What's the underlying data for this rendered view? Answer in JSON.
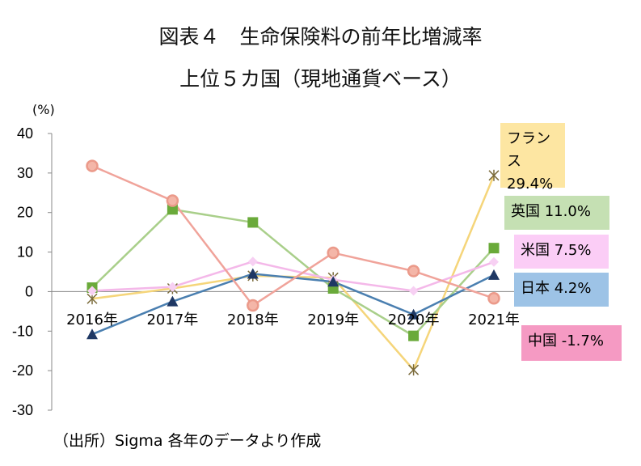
{
  "title_line1": "図表４　生命保険料の前年比増減率",
  "title_line2": "上位５カ国（現地通貨ベース）",
  "unit_label": "(%)",
  "source_note": "（出所）Sigma 各年のデータより作成",
  "chart_data": {
    "type": "line",
    "categories": [
      "2016年",
      "2017年",
      "2018年",
      "2019年",
      "2020年",
      "2021年"
    ],
    "ylim": [
      -30,
      40
    ],
    "yticks": [
      "40",
      "30",
      "20",
      "10",
      "0",
      "-10",
      "-20",
      "-30"
    ],
    "grid": false,
    "series": [
      {
        "name": "フランス",
        "label_value": "29.4%",
        "color": "#f5d57a",
        "marker": "star",
        "values": [
          -1.8,
          0.8,
          4.0,
          3.5,
          -19.8,
          29.4
        ]
      },
      {
        "name": "英国",
        "label_value": "11.0%",
        "color": "#a9cf8a",
        "marker": "square",
        "values": [
          1.0,
          20.8,
          17.5,
          0.8,
          -11.2,
          11.0
        ]
      },
      {
        "name": "米国",
        "label_value": "7.5%",
        "color": "#f4b8e9",
        "marker": "diamond",
        "values": [
          0.2,
          1.2,
          7.6,
          3.0,
          0.2,
          7.5
        ]
      },
      {
        "name": "日本",
        "label_value": "4.2%",
        "color": "#4a7fb0",
        "marker": "triangle",
        "values": [
          -10.8,
          -2.5,
          4.5,
          2.5,
          -5.8,
          4.2
        ]
      },
      {
        "name": "中国",
        "label_value": "-1.7%",
        "color": "#f0a39a",
        "marker": "circle",
        "values": [
          31.8,
          23.0,
          -3.5,
          9.8,
          5.2,
          -1.7
        ]
      }
    ]
  },
  "labels": [
    {
      "name": "フランス",
      "value": "29.4%",
      "bg": "#fde6a2"
    },
    {
      "name": "英国",
      "value": "11.0%",
      "bg": "#c5e0b3"
    },
    {
      "name": "米国",
      "value": "7.5%",
      "bg": "#fbcdf6"
    },
    {
      "name": "日本",
      "value": "4.2%",
      "bg": "#9dc3e6"
    },
    {
      "name": "中国",
      "value": "-1.7%",
      "bg": "#f59ac3"
    }
  ]
}
